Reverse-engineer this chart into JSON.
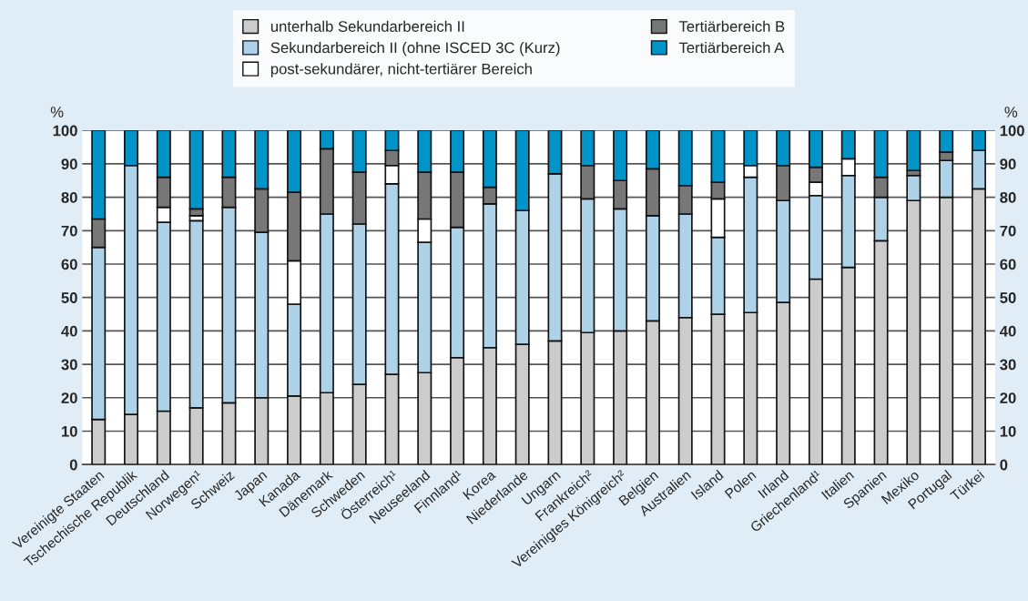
{
  "chart_data": {
    "type": "bar",
    "stacked": true,
    "ylabel": "%",
    "y2label": "%",
    "categories": [
      "Vereinigte Staaten",
      "Tschechische Republik",
      "Deutschland",
      "Norwegen¹",
      "Schweiz",
      "Japan",
      "Kanada",
      "Dänemark",
      "Schweden",
      "Österreich¹",
      "Neuseeland",
      "Finnland¹",
      "Korea",
      "Niederlande",
      "Ungarn",
      "Frankreich²",
      "Vereinigtes Königreich²",
      "Belgien",
      "Australien",
      "Island",
      "Polen",
      "Irland",
      "Griechenland¹",
      "Italien",
      "Spanien",
      "Mexiko",
      "Portugal",
      "Türkei"
    ],
    "series": [
      {
        "name": "unterhalb Sekundarbereich II",
        "color": "#cccccc",
        "values": [
          13.5,
          15,
          16,
          17,
          18.5,
          20,
          20.5,
          21.5,
          24,
          27,
          27.5,
          32,
          35,
          36,
          37,
          39.5,
          40,
          43,
          44,
          45,
          45.5,
          48.5,
          55.5,
          59,
          67,
          79,
          80,
          82.5
        ]
      },
      {
        "name": "Sekundarbereich II (ohne ISCED 3C (Kurz)",
        "color": "#aed2e8",
        "values": [
          51.5,
          74.5,
          56.5,
          56,
          58.5,
          49.5,
          27.5,
          53.5,
          48,
          57,
          39,
          39,
          43,
          40,
          50,
          40,
          36.5,
          31.5,
          31,
          23,
          40.5,
          30.5,
          25,
          27.5,
          13,
          7.5,
          11,
          11.5
        ]
      },
      {
        "name": "post-sekundärer, nicht-tertiärer Bereich",
        "color": "#ffffff",
        "values": [
          0,
          0,
          4.5,
          1.5,
          0,
          0,
          13,
          0,
          0,
          5.5,
          7,
          0,
          0,
          0,
          0,
          0,
          0,
          0,
          0,
          11.5,
          3.5,
          0,
          4,
          5,
          0,
          0,
          0,
          0
        ]
      },
      {
        "name": "Tertiärbereich B",
        "color": "#777777",
        "values": [
          8.5,
          0,
          9,
          2,
          9,
          13,
          20.5,
          19.5,
          15.5,
          4.5,
          14,
          16.5,
          5,
          0,
          0,
          10,
          8.5,
          14,
          8.5,
          5,
          0,
          10.5,
          4.5,
          0,
          6,
          1.5,
          2.5,
          0
        ]
      },
      {
        "name": "Tertiärbereich A",
        "color": "#0094c8",
        "values": [
          26.5,
          10.5,
          14,
          23.5,
          14,
          17.5,
          18.5,
          5.5,
          12.5,
          6,
          12.5,
          12.5,
          17,
          24,
          13,
          10.5,
          15,
          11.5,
          16.5,
          15.5,
          10.5,
          10.5,
          11,
          8.5,
          14,
          12,
          6.5,
          6
        ]
      }
    ],
    "ylim": [
      0,
      100
    ],
    "yticks": [
      0,
      10,
      20,
      30,
      40,
      50,
      60,
      70,
      80,
      90,
      100
    ],
    "y2lim": [
      0,
      100
    ],
    "y2ticks": [
      0,
      10,
      20,
      30,
      40,
      50,
      60,
      70,
      80,
      90,
      100
    ],
    "grid": "y",
    "legend": "top"
  }
}
